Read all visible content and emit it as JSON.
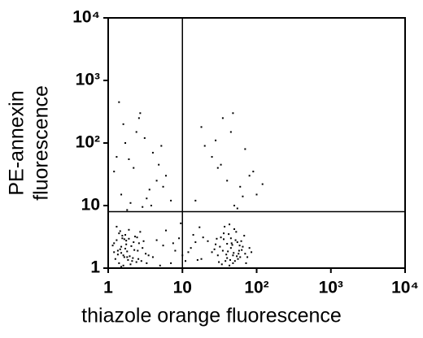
{
  "chart_data": {
    "type": "scatter",
    "xlabel": "thiazole orange fluorescence",
    "ylabel": [
      "PE-annexin",
      "fluorescence"
    ],
    "xscale": "log",
    "yscale": "log",
    "xlim": [
      1,
      10000
    ],
    "ylim": [
      1,
      10000
    ],
    "xticks": [
      1,
      10,
      {
        "value": 100,
        "label": "10²"
      },
      {
        "value": 1000,
        "label": "10³"
      },
      {
        "value": 10000,
        "label": "10⁴"
      }
    ],
    "yticks": [
      1,
      10,
      {
        "value": 100,
        "label": "10²"
      },
      {
        "value": 1000,
        "label": "10³"
      },
      {
        "value": 10000,
        "label": "10⁴"
      }
    ],
    "quadrant_lines": {
      "x": 10,
      "y": 8
    },
    "color": "#000000",
    "x": [
      1.2,
      1.5,
      1.8,
      2.1,
      1.3,
      2.5,
      1.7,
      1.4,
      2.9,
      1.6,
      2.2,
      1.9,
      1.25,
      3.2,
      1.55,
      2.4,
      1.75,
      1.35,
      2.7,
      1.45,
      2.0,
      1.65,
      3.5,
      1.15,
      2.3,
      1.85,
      1.5,
      2.6,
      1.3,
      1.95,
      2.8,
      1.4,
      1.7,
      2.15,
      1.6,
      3.0,
      1.2,
      2.45,
      1.8,
      1.5,
      2.05,
      1.35,
      2.55,
      1.9,
      1.45,
      3.3,
      1.65,
      2.25,
      1.75,
      1.55,
      30,
      45,
      38,
      52,
      60,
      28,
      42,
      35,
      70,
      48,
      55,
      33,
      40,
      65,
      25,
      50,
      44,
      58,
      36,
      75,
      47,
      31,
      53,
      39,
      62,
      43,
      56,
      27,
      49,
      68,
      34,
      46,
      41,
      80,
      37,
      54,
      29,
      51,
      63,
      45,
      32,
      57,
      40,
      72,
      48,
      36,
      59,
      43,
      85,
      22,
      4,
      5.5,
      7,
      9,
      12,
      15,
      18,
      6,
      8,
      11,
      14,
      4.5,
      10,
      13,
      17,
      5,
      7.5,
      16,
      19,
      9.5,
      1.5,
      2.2,
      3.1,
      1.8,
      4.5,
      2.7,
      1.3,
      3.6,
      5.2,
      2.0,
      1.6,
      6.0,
      2.9,
      1.4,
      4.0,
      3.3,
      2.4,
      1.2,
      5.5,
      1.9,
      3.8,
      2.6,
      7.0,
      1.7,
      4.8,
      15,
      30,
      45,
      60,
      20,
      80,
      35,
      50,
      25,
      100,
      40,
      70,
      18,
      55,
      33,
      90,
      28,
      65,
      120,
      48
    ],
    "values": [
      1.8,
      2.2,
      1.5,
      1.3,
      2.8,
      1.9,
      3.4,
      1.2,
      2.1,
      1.6,
      2.6,
      4.1,
      1.4,
      1.7,
      3.0,
      1.25,
      2.4,
      1.9,
      3.8,
      2.0,
      1.15,
      2.9,
      1.6,
      2.3,
      3.2,
      1.35,
      1.75,
      2.5,
      4.6,
      1.55,
      1.3,
      3.6,
      2.05,
      1.45,
      1.1,
      2.7,
      2.5,
      3.1,
      1.85,
      1.05,
      2.25,
      1.65,
      1.4,
      2.95,
      3.9,
      1.2,
      1.5,
      1.95,
      2.75,
      3.3,
      1.6,
      2.1,
      1.3,
      2.8,
      1.5,
      2.4,
      3.5,
      1.9,
      1.7,
      1.2,
      2.6,
      3.1,
      1.45,
      2.2,
      1.8,
      4.2,
      1.35,
      1.9,
      2.9,
      1.5,
      2.35,
      1.25,
      3.8,
      1.65,
      2.7,
      5.0,
      1.4,
      2.0,
      1.75,
      3.3,
      1.15,
      2.5,
      1.85,
      2.1,
      4.6,
      1.55,
      2.95,
      1.3,
      1.95,
      3.0,
      2.2,
      1.7,
      2.45,
      1.2,
      1.6,
      3.6,
      2.3,
      1.1,
      1.8,
      2.7,
      1.5,
      2.3,
      1.2,
      3.0,
      1.8,
      2.6,
      1.4,
      4.0,
      1.9,
      1.3,
      3.4,
      2.8,
      1.6,
      2.1,
      4.5,
      1.1,
      2.5,
      1.35,
      3.1,
      5.2,
      15,
      40,
      120,
      8.5,
      25,
      300,
      60,
      18,
      90,
      11,
      200,
      30,
      9.5,
      450,
      70,
      13,
      150,
      35,
      20,
      55,
      10,
      250,
      12,
      100,
      45,
      12,
      40,
      150,
      20,
      90,
      30,
      250,
      10,
      60,
      15,
      25,
      80,
      180,
      9,
      45,
      35,
      110,
      14,
      22,
      300
    ]
  }
}
